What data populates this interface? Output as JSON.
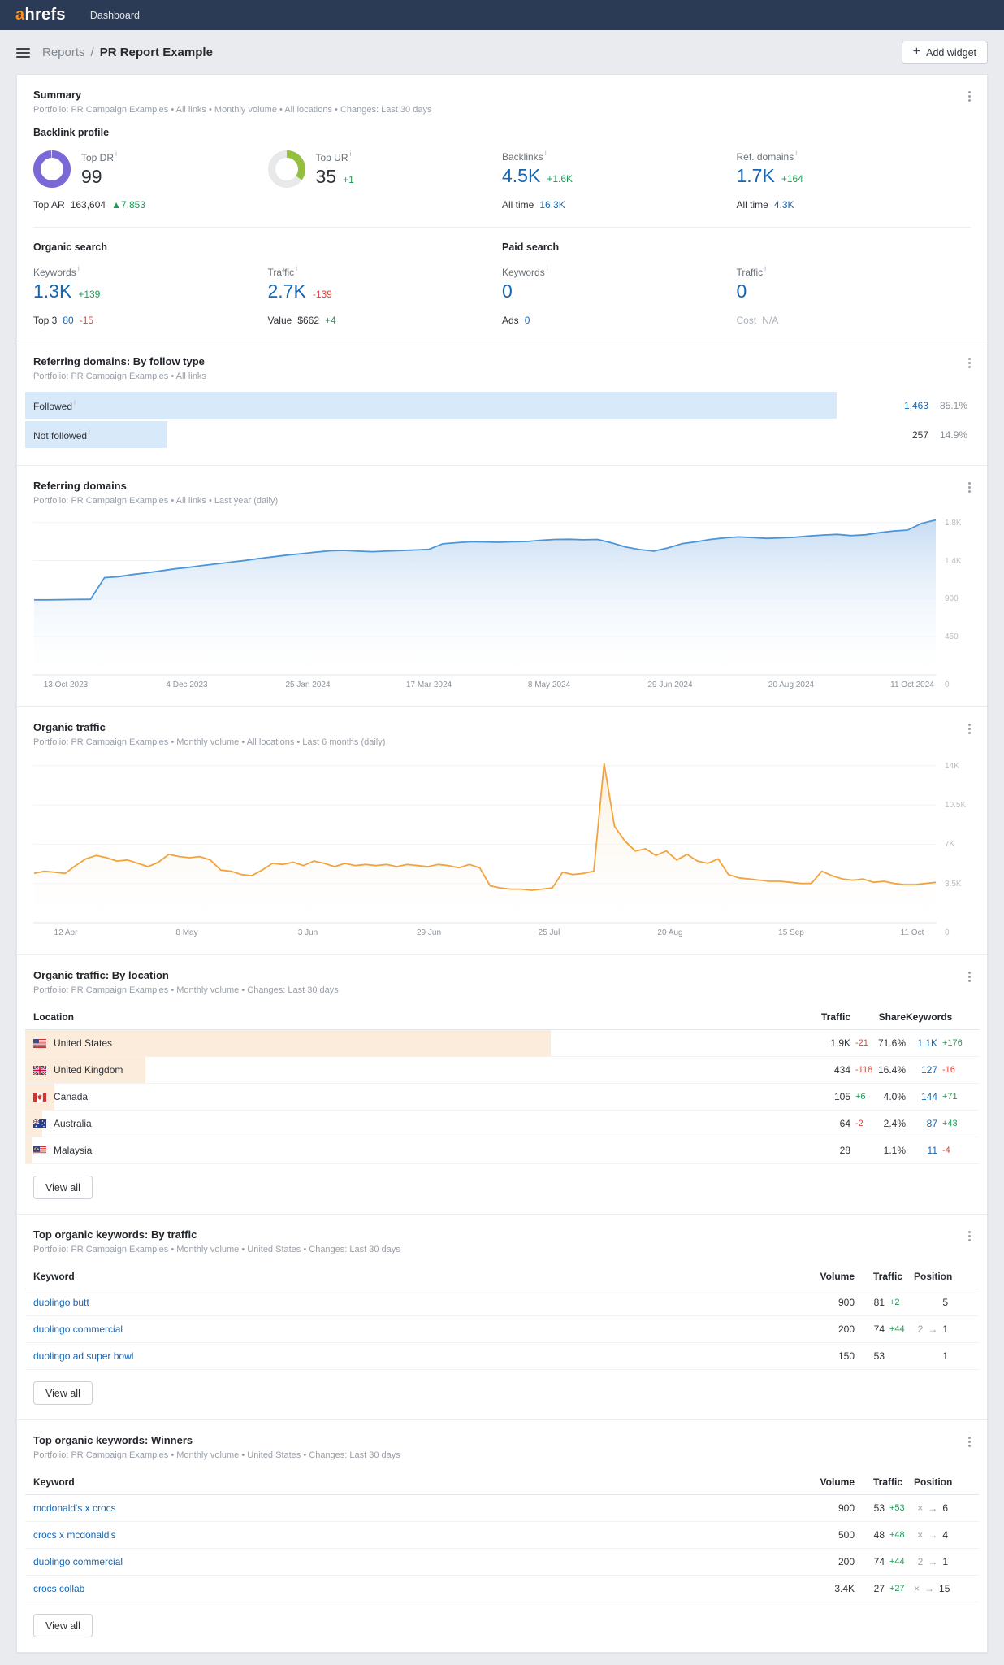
{
  "colors": {
    "navbar_bg": "#2b3b55",
    "brand_orange": "#f98f1f",
    "link_blue": "#1567b4",
    "positive_green": "#1d9b54",
    "negative_red": "#dc4437",
    "donut_purple": "#7a68d6",
    "donut_green": "#94c03d",
    "followed_bar_blue": "#d8e9fa",
    "location_bar_peach": "#fcecdc",
    "chart_blue": "#4b95d8",
    "chart_orange": "#f2a33c"
  },
  "topbar": {
    "logo_accent": "a",
    "logo_rest": "hrefs",
    "nav_item": "Dashboard"
  },
  "toolbar": {
    "breadcrumb_section": "Reports",
    "breadcrumb_sep": "/",
    "title": "PR Report Example",
    "add_widget_plus": "+",
    "add_widget_label": "Add widget"
  },
  "ui": {
    "position_arrow": "→",
    "info_glyph": "i"
  },
  "summary": {
    "title": "Summary",
    "subtitle": "Portfolio: PR Campaign Examples  •  All links  •  Monthly volume  •  All locations  •  Changes: Last 30 days",
    "backlink_profile": {
      "heading": "Backlink profile",
      "top_dr": {
        "label": "Top DR",
        "value": "99",
        "pct": 99,
        "color": "#7a68d6"
      },
      "top_ar": {
        "label": "Top AR",
        "value": "163,604",
        "arrow": "▲",
        "change": "7,853"
      },
      "top_ur": {
        "label": "Top UR",
        "value": "35",
        "change": "+1",
        "pct": 35,
        "color": "#94c03d"
      },
      "backlinks": {
        "label": "Backlinks",
        "value": "4.5K",
        "change": "+1.6K",
        "alltime_label": "All time",
        "alltime_value": "16.3K"
      },
      "ref_domains": {
        "label": "Ref. domains",
        "value": "1.7K",
        "change": "+164",
        "alltime_label": "All time",
        "alltime_value": "4.3K"
      }
    },
    "organic_search": {
      "heading": "Organic search",
      "keywords": {
        "label": "Keywords",
        "value": "1.3K",
        "change": "+139",
        "sub_label": "Top 3",
        "sub_value": "80",
        "sub_change": "-15"
      },
      "traffic": {
        "label": "Traffic",
        "value": "2.7K",
        "change": "-139",
        "sub_label": "Value",
        "sub_value": "$662",
        "sub_change": "+4"
      }
    },
    "paid_search": {
      "heading": "Paid search",
      "keywords": {
        "label": "Keywords",
        "value": "0",
        "sub_label": "Ads",
        "sub_value": "0"
      },
      "traffic": {
        "label": "Traffic",
        "value": "0",
        "sub_label": "Cost",
        "sub_value": "N/A"
      }
    }
  },
  "follow_type": {
    "title": "Referring domains: By follow type",
    "subtitle": "Portfolio: PR Campaign Examples  •  All links",
    "rows": [
      {
        "label": "Followed",
        "value": "1,463",
        "share": "85.1%",
        "pct": 85.1,
        "link": true
      },
      {
        "label": "Not followed",
        "value": "257",
        "share": "14.9%",
        "pct": 14.9,
        "link": false
      }
    ]
  },
  "ref_domains_widget": {
    "title": "Referring domains",
    "subtitle": "Portfolio: PR Campaign Examples  •  All links  •  Last year (daily)"
  },
  "organic_traffic_widget": {
    "title": "Organic traffic",
    "subtitle": "Portfolio: PR Campaign Examples  •  Monthly volume  •  All locations  •  Last 6 months (daily)"
  },
  "chart_data": [
    {
      "type": "area",
      "name": "referring-domains",
      "title": "Referring domains",
      "x_labels": [
        "13 Oct 2023",
        "4 Dec 2023",
        "25 Jan 2024",
        "17 Mar 2024",
        "8 May 2024",
        "29 Jun 2024",
        "20 Aug 2024",
        "11 Oct 2024"
      ],
      "y_ticks": [
        {
          "value": 450,
          "label": "450"
        },
        {
          "value": 900,
          "label": "900"
        },
        {
          "value": 1350,
          "label": "1.4K"
        },
        {
          "value": 1800,
          "label": "1.8K"
        }
      ],
      "y_zero_label": "0",
      "ylim": [
        0,
        1845
      ],
      "grid": true,
      "legend": "none",
      "line_color": "#4b95d8",
      "fill_top": "#c7ddf3",
      "values": [
        885,
        885,
        888,
        890,
        892,
        1148,
        1160,
        1185,
        1205,
        1228,
        1252,
        1270,
        1292,
        1312,
        1332,
        1352,
        1375,
        1395,
        1415,
        1432,
        1450,
        1465,
        1470,
        1462,
        1455,
        1462,
        1468,
        1475,
        1482,
        1548,
        1562,
        1572,
        1570,
        1566,
        1572,
        1576,
        1590,
        1600,
        1602,
        1596,
        1600,
        1560,
        1510,
        1480,
        1462,
        1500,
        1550,
        1572,
        1600,
        1618,
        1630,
        1622,
        1612,
        1618,
        1626,
        1640,
        1652,
        1660,
        1645,
        1655,
        1680,
        1700,
        1710,
        1790,
        1830
      ]
    },
    {
      "type": "area",
      "name": "organic-traffic",
      "title": "Organic traffic",
      "x_labels": [
        "12 Apr",
        "8 May",
        "3 Jun",
        "29 Jun",
        "25 Jul",
        "20 Aug",
        "15 Sep",
        "11 Oct"
      ],
      "y_ticks": [
        {
          "value": 3.5,
          "label": "3.5K"
        },
        {
          "value": 7,
          "label": "7K"
        },
        {
          "value": 10.5,
          "label": "10.5K"
        },
        {
          "value": 14,
          "label": "14K"
        }
      ],
      "y_zero_label": "0",
      "ylim": [
        0,
        14.5
      ],
      "grid": true,
      "legend": "none",
      "line_color": "#f2a33c",
      "fill_top": "#fbeedb",
      "values": [
        4.4,
        4.6,
        4.5,
        4.4,
        5.1,
        5.7,
        6.0,
        5.8,
        5.5,
        5.6,
        5.3,
        5.0,
        5.4,
        6.1,
        5.9,
        5.8,
        5.9,
        5.6,
        4.7,
        4.6,
        4.3,
        4.2,
        4.7,
        5.3,
        5.2,
        5.4,
        5.1,
        5.5,
        5.3,
        5.0,
        5.3,
        5.1,
        5.2,
        5.1,
        5.2,
        5.0,
        5.2,
        5.1,
        5.0,
        5.2,
        5.1,
        4.9,
        5.2,
        4.9,
        3.3,
        3.1,
        3.0,
        3.0,
        2.9,
        3.0,
        3.1,
        4.5,
        4.3,
        4.4,
        4.6,
        14.2,
        8.6,
        7.3,
        6.4,
        6.6,
        6.0,
        6.4,
        5.6,
        6.1,
        5.5,
        5.3,
        5.7,
        4.3,
        4.0,
        3.9,
        3.8,
        3.7,
        3.7,
        3.6,
        3.5,
        3.5,
        4.6,
        4.2,
        3.9,
        3.8,
        3.9,
        3.6,
        3.7,
        3.5,
        3.4,
        3.4,
        3.5,
        3.6
      ]
    }
  ],
  "by_location": {
    "title": "Organic traffic: By location",
    "subtitle": "Portfolio: PR Campaign Examples  •  Monthly volume  •  Changes: Last 30 days",
    "headers": [
      "Location",
      "Traffic",
      "Share",
      "Keywords"
    ],
    "rows": [
      {
        "country": "United States",
        "flag": "us",
        "traffic": "1.9K",
        "traffic_change": "-21",
        "traffic_dir": "down",
        "share": "71.6%",
        "share_pct": 71.6,
        "keywords": "1.1K",
        "kw_change": "+176",
        "kw_dir": "up"
      },
      {
        "country": "United Kingdom",
        "flag": "gb",
        "traffic": "434",
        "traffic_change": "-118",
        "traffic_dir": "down",
        "share": "16.4%",
        "share_pct": 16.4,
        "keywords": "127",
        "kw_change": "-16",
        "kw_dir": "down"
      },
      {
        "country": "Canada",
        "flag": "ca",
        "traffic": "105",
        "traffic_change": "+6",
        "traffic_dir": "up",
        "share": "4.0%",
        "share_pct": 4.0,
        "keywords": "144",
        "kw_change": "+71",
        "kw_dir": "up"
      },
      {
        "country": "Australia",
        "flag": "au",
        "traffic": "64",
        "traffic_change": "-2",
        "traffic_dir": "down",
        "share": "2.4%",
        "share_pct": 2.4,
        "keywords": "87",
        "kw_change": "+43",
        "kw_dir": "up"
      },
      {
        "country": "Malaysia",
        "flag": "my",
        "traffic": "28",
        "traffic_change": "",
        "traffic_dir": "",
        "share": "1.1%",
        "share_pct": 1.1,
        "keywords": "11",
        "kw_change": "-4",
        "kw_dir": "down"
      }
    ],
    "view_all": "View all"
  },
  "kw_by_traffic": {
    "title": "Top organic keywords: By traffic",
    "subtitle": "Portfolio: PR Campaign Examples  •  Monthly volume  •  United States  •  Changes: Last 30 days",
    "headers": [
      "Keyword",
      "Volume",
      "Traffic",
      "Position"
    ],
    "rows": [
      {
        "keyword": "duolingo butt",
        "volume": "900",
        "traffic": "81",
        "traffic_change": "+2",
        "pos_old": "",
        "pos_new": "5"
      },
      {
        "keyword": "duolingo commercial",
        "volume": "200",
        "traffic": "74",
        "traffic_change": "+44",
        "pos_old": "2",
        "pos_new": "1"
      },
      {
        "keyword": "duolingo ad super bowl",
        "volume": "150",
        "traffic": "53",
        "traffic_change": "",
        "pos_old": "",
        "pos_new": "1"
      }
    ],
    "view_all": "View all"
  },
  "kw_winners": {
    "title": "Top organic keywords: Winners",
    "subtitle": "Portfolio: PR Campaign Examples  •  Monthly volume  •  United States  •  Changes: Last 30 days",
    "headers": [
      "Keyword",
      "Volume",
      "Traffic",
      "Position"
    ],
    "rows": [
      {
        "keyword": "mcdonald's x crocs",
        "volume": "900",
        "traffic": "53",
        "traffic_change": "+53",
        "pos_old": "×",
        "pos_new": "6"
      },
      {
        "keyword": "crocs x mcdonald's",
        "volume": "500",
        "traffic": "48",
        "traffic_change": "+48",
        "pos_old": "×",
        "pos_new": "4"
      },
      {
        "keyword": "duolingo commercial",
        "volume": "200",
        "traffic": "74",
        "traffic_change": "+44",
        "pos_old": "2",
        "pos_new": "1"
      },
      {
        "keyword": "crocs collab",
        "volume": "3.4K",
        "traffic": "27",
        "traffic_change": "+27",
        "pos_old": "×",
        "pos_new": "15"
      }
    ],
    "view_all": "View all"
  }
}
